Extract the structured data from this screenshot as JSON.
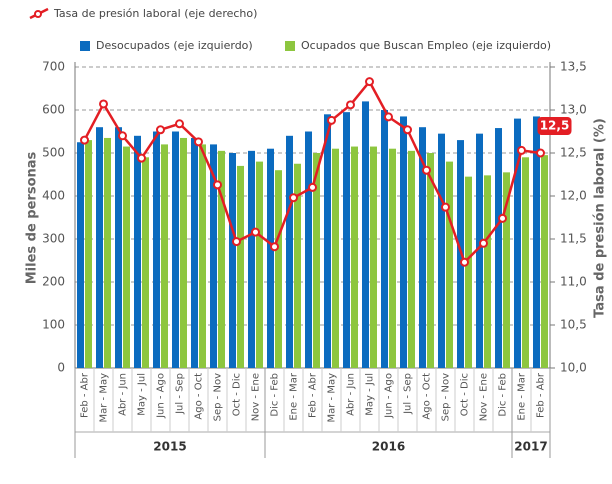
{
  "chart_data": {
    "type": "bar",
    "categories": [
      "Feb - Abr",
      "Mar - May",
      "Abr - Jun",
      "May - Jul",
      "Jun - Ago",
      "Jul - Sep",
      "Ago - Oct",
      "Sep - Nov",
      "Oct - Dic",
      "Nov - Ene",
      "Dic - Feb",
      "Ene - Mar",
      "Feb - Abr",
      "Mar - May",
      "Abr - Jun",
      "May - Jul",
      "Jun - Ago",
      "Jul - Sep",
      "Ago - Oct",
      "Sep - Nov",
      "Oct - Dic",
      "Nov - Ene",
      "Dic - Feb",
      "Ene - Mar",
      "Feb - Abr"
    ],
    "year_labels": [
      "2015",
      null,
      null,
      null,
      null,
      null,
      null,
      null,
      null,
      null,
      "2016",
      null,
      null,
      null,
      null,
      null,
      null,
      null,
      null,
      null,
      null,
      null,
      null,
      "2017",
      null
    ],
    "y_label": "Miles de personas",
    "y2_label": "Tasa de presión laboral (%)",
    "ylim": [
      0,
      700
    ],
    "yticks": [
      0,
      100,
      200,
      300,
      400,
      500,
      600,
      700
    ],
    "y2lim": [
      10,
      13.5
    ],
    "y2ticks": [
      {
        "value": 10,
        "label": "10,0"
      },
      {
        "value": 10.5,
        "label": "10,5"
      },
      {
        "value": 11,
        "label": "11,0"
      },
      {
        "value": 11.5,
        "label": "11,5"
      },
      {
        "value": 12,
        "label": "12,0"
      },
      {
        "value": 12.5,
        "label": "12,5"
      },
      {
        "value": 13,
        "label": "13,0"
      },
      {
        "value": 13.5,
        "label": "13,5"
      }
    ],
    "grid": true,
    "series": [
      {
        "name": "Desocupados (eje izquierdo)",
        "type": "bar",
        "color": "#0b6bbf",
        "values": [
          525,
          560,
          560,
          540,
          550,
          550,
          535,
          520,
          500,
          505,
          510,
          540,
          550,
          590,
          595,
          620,
          600,
          585,
          560,
          545,
          530,
          545,
          558,
          580,
          585
        ]
      },
      {
        "name": "Ocupados que Buscan Empleo (eje izquierdo)",
        "type": "bar",
        "color": "#8dc63f",
        "values": [
          530,
          535,
          515,
          490,
          520,
          535,
          520,
          505,
          470,
          480,
          460,
          475,
          500,
          510,
          515,
          515,
          510,
          505,
          500,
          480,
          445,
          448,
          455,
          490,
          495
        ]
      },
      {
        "name": "Tasa de presión laboral (eje derecho)",
        "type": "line",
        "axis": "y2",
        "color": "#e31e24",
        "values": [
          12.65,
          13.07,
          12.7,
          12.44,
          12.77,
          12.84,
          12.63,
          12.13,
          11.47,
          11.58,
          11.41,
          11.98,
          12.1,
          12.88,
          13.06,
          13.33,
          12.92,
          12.77,
          12.3,
          11.87,
          11.23,
          11.45,
          11.74,
          12.53,
          12.5
        ],
        "value_labels": [
          null,
          null,
          null,
          null,
          null,
          null,
          null,
          null,
          null,
          null,
          null,
          null,
          null,
          null,
          null,
          null,
          null,
          null,
          null,
          null,
          null,
          null,
          null,
          null,
          "12,5"
        ]
      }
    ]
  }
}
